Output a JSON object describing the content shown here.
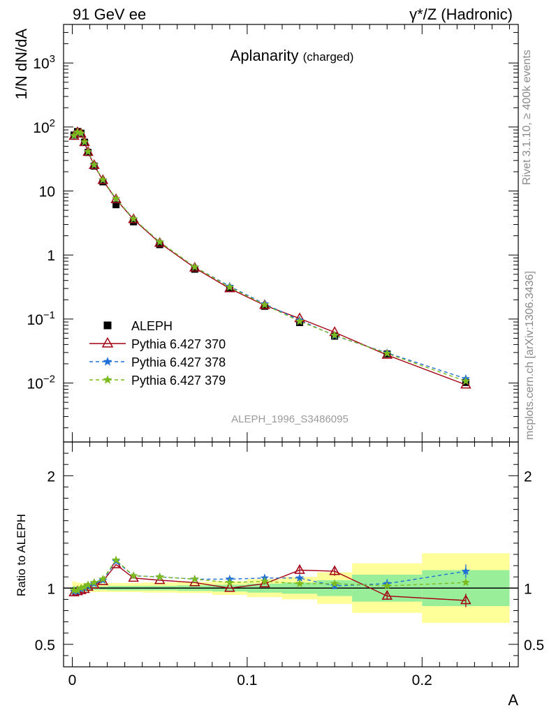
{
  "header": {
    "left": "91 GeV ee",
    "right": "γ*/Z (Hadronic)"
  },
  "side_text": {
    "rivet": "Rivet 3.1.10, ≥ 400k events",
    "mcplots": "mcplots.cern.ch [arXiv:1306.3436]"
  },
  "chart_data": [
    {
      "type": "scatter",
      "title": "Aplanarity",
      "title_suffix": "(charged)",
      "ylabel": "1/N dN/dA",
      "xlabel": "A",
      "yscale": "log",
      "ylim": [
        0.0012,
        4000
      ],
      "xlim": [
        -0.005,
        0.255
      ],
      "y_tick_labels": [
        "10^-2",
        "10^-1",
        "1",
        "10",
        "10^2",
        "10^3"
      ],
      "x_tick_labels": [
        "0",
        "0.1",
        "0.2"
      ],
      "watermark": "ALEPH_1996_S3486095",
      "legend_position": "lower-left",
      "series": [
        {
          "name": "ALEPH",
          "color": "#000000",
          "marker": "square",
          "x": [
            0.001,
            0.003,
            0.005,
            0.007,
            0.009,
            0.0125,
            0.0175,
            0.025,
            0.035,
            0.05,
            0.07,
            0.09,
            0.11,
            0.13,
            0.15,
            0.18,
            0.225
          ],
          "y": [
            75,
            85,
            80,
            58,
            40,
            24.5,
            13.9,
            6.1,
            3.3,
            1.45,
            0.6,
            0.3,
            0.158,
            0.088,
            0.054,
            0.0285,
            0.0102
          ]
        },
        {
          "name": "Pythia 6.427 370",
          "color": "#a30014",
          "marker": "triangle-open",
          "line": "solid",
          "x": [
            0.001,
            0.003,
            0.005,
            0.007,
            0.009,
            0.0125,
            0.0175,
            0.025,
            0.035,
            0.05,
            0.07,
            0.09,
            0.11,
            0.13,
            0.15,
            0.18,
            0.225
          ],
          "y": [
            72.0,
            82.4,
            78.4,
            57.4,
            40.4,
            25.2,
            14.7,
            7.4,
            3.6,
            1.54,
            0.63,
            0.3,
            0.164,
            0.102,
            0.062,
            0.0274,
            0.0094
          ]
        },
        {
          "name": "Pythia 6.427 378",
          "color": "#1f6fd6",
          "marker": "star",
          "line": "dashed",
          "x": [
            0.001,
            0.003,
            0.005,
            0.007,
            0.009,
            0.0125,
            0.0175,
            0.025,
            0.035,
            0.05,
            0.07,
            0.09,
            0.11,
            0.13,
            0.15,
            0.18,
            0.225
          ],
          "y": [
            72.8,
            82.5,
            79.2,
            58.0,
            41.0,
            25.5,
            14.9,
            7.55,
            3.67,
            1.6,
            0.65,
            0.325,
            0.172,
            0.096,
            0.055,
            0.0296,
            0.0117
          ]
        },
        {
          "name": "Pythia 6.427 379",
          "color": "#7cbb1f",
          "marker": "star",
          "line": "dashed",
          "x": [
            0.001,
            0.003,
            0.005,
            0.007,
            0.009,
            0.0125,
            0.0175,
            0.025,
            0.035,
            0.05,
            0.07,
            0.09,
            0.11,
            0.13,
            0.15,
            0.18,
            0.225
          ],
          "y": [
            73.5,
            83.3,
            80.0,
            58.5,
            41.2,
            25.7,
            15.0,
            7.6,
            3.68,
            1.6,
            0.65,
            0.315,
            0.167,
            0.092,
            0.056,
            0.029,
            0.0107
          ]
        }
      ]
    },
    {
      "type": "line",
      "ylabel": "Ratio to ALEPH",
      "xlabel": "A",
      "ylim": [
        0.3,
        2.3
      ],
      "xlim": [
        -0.005,
        0.255
      ],
      "y_tick_labels": [
        "0.5",
        "1",
        "2"
      ],
      "x_tick_labels": [
        "0",
        "0.1",
        "0.2"
      ],
      "bands": {
        "edges": [
          0,
          0.002,
          0.004,
          0.006,
          0.008,
          0.01,
          0.015,
          0.02,
          0.03,
          0.04,
          0.06,
          0.08,
          0.1,
          0.12,
          0.14,
          0.16,
          0.2,
          0.25
        ],
        "inner": [
          [
            0.985,
            1.015
          ],
          [
            0.985,
            1.015
          ],
          [
            0.985,
            1.015
          ],
          [
            0.985,
            1.015
          ],
          [
            0.985,
            1.015
          ],
          [
            0.985,
            1.015
          ],
          [
            0.985,
            1.015
          ],
          [
            0.98,
            1.02
          ],
          [
            0.98,
            1.02
          ],
          [
            0.98,
            1.02
          ],
          [
            0.975,
            1.025
          ],
          [
            0.97,
            1.03
          ],
          [
            0.96,
            1.04
          ],
          [
            0.95,
            1.05
          ],
          [
            0.93,
            1.07
          ],
          [
            0.88,
            1.12
          ],
          [
            0.84,
            1.16
          ]
        ],
        "outer": [
          [
            0.955,
            1.06
          ],
          [
            0.96,
            1.05
          ],
          [
            0.965,
            1.045
          ],
          [
            0.965,
            1.045
          ],
          [
            0.965,
            1.045
          ],
          [
            0.965,
            1.045
          ],
          [
            0.965,
            1.045
          ],
          [
            0.965,
            1.045
          ],
          [
            0.965,
            1.045
          ],
          [
            0.96,
            1.05
          ],
          [
            0.955,
            1.055
          ],
          [
            0.94,
            1.06
          ],
          [
            0.92,
            1.08
          ],
          [
            0.9,
            1.1
          ],
          [
            0.86,
            1.14
          ],
          [
            0.78,
            1.22
          ],
          [
            0.69,
            1.31
          ]
        ],
        "inner_color": "#99ee99",
        "outer_color": "#ffff99"
      },
      "series": [
        {
          "name": "Pythia 6.427 370",
          "color": "#a30014",
          "x": [
            0.001,
            0.003,
            0.005,
            0.007,
            0.009,
            0.0125,
            0.0175,
            0.025,
            0.035,
            0.05,
            0.07,
            0.09,
            0.11,
            0.13,
            0.15,
            0.18,
            0.225
          ],
          "y": [
            0.96,
            0.97,
            0.98,
            0.99,
            1.01,
            1.03,
            1.06,
            1.21,
            1.09,
            1.07,
            1.05,
            1.0,
            1.04,
            1.16,
            1.15,
            0.93,
            0.89
          ],
          "err": [
            0,
            0,
            0,
            0,
            0,
            0,
            0,
            0,
            0,
            0,
            0,
            0,
            0,
            0.03,
            0.04,
            0.03,
            0.06
          ]
        },
        {
          "name": "Pythia 6.427 378",
          "color": "#1f6fd6",
          "x": [
            0.001,
            0.003,
            0.005,
            0.007,
            0.009,
            0.0125,
            0.0175,
            0.025,
            0.035,
            0.05,
            0.07,
            0.09,
            0.11,
            0.13,
            0.15,
            0.18,
            0.225
          ],
          "y": [
            0.97,
            0.97,
            0.99,
            1.0,
            1.02,
            1.04,
            1.07,
            1.24,
            1.11,
            1.1,
            1.08,
            1.08,
            1.09,
            1.09,
            1.02,
            1.04,
            1.15
          ],
          "err": [
            0,
            0,
            0,
            0,
            0,
            0,
            0,
            0,
            0,
            0,
            0,
            0,
            0.02,
            0.02,
            0.03,
            0.04,
            0.06
          ]
        },
        {
          "name": "Pythia 6.427 379",
          "color": "#7cbb1f",
          "x": [
            0.001,
            0.003,
            0.005,
            0.007,
            0.009,
            0.0125,
            0.0175,
            0.025,
            0.035,
            0.05,
            0.07,
            0.09,
            0.11,
            0.13,
            0.15,
            0.18,
            0.225
          ],
          "y": [
            0.98,
            0.98,
            1.0,
            1.01,
            1.03,
            1.05,
            1.08,
            1.25,
            1.11,
            1.1,
            1.08,
            1.05,
            1.06,
            1.04,
            1.04,
            1.02,
            1.05
          ],
          "err": [
            0,
            0,
            0,
            0,
            0,
            0,
            0,
            0,
            0,
            0,
            0,
            0,
            0,
            0,
            0,
            0,
            0
          ]
        }
      ]
    }
  ]
}
